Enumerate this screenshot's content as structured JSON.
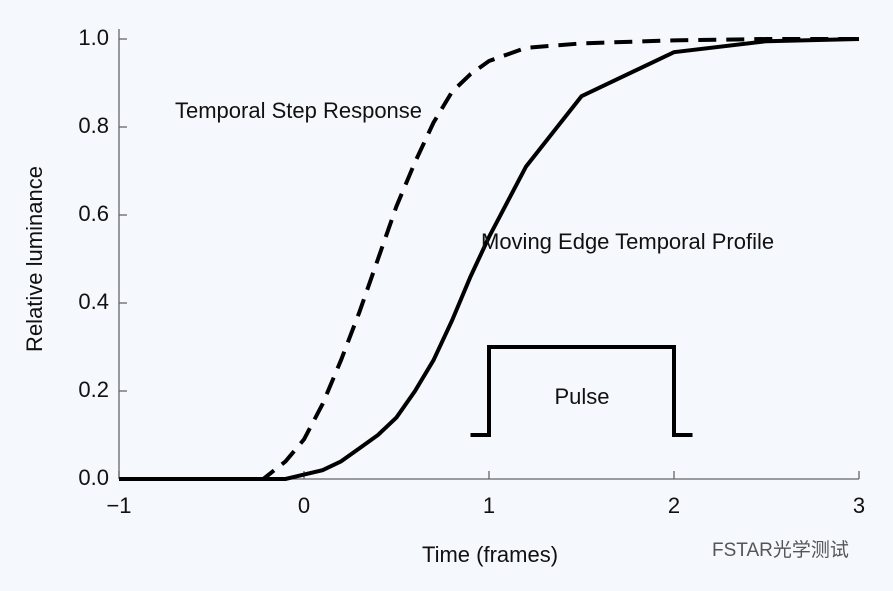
{
  "chart_data": {
    "type": "line",
    "x_label": "Time (frames)",
    "y_label": "Relative luminance",
    "xlim": [
      -1,
      3
    ],
    "ylim": [
      0,
      1
    ],
    "xticks": [
      {
        "value": -1,
        "label": "−1"
      },
      0,
      1,
      2,
      3
    ],
    "yticks": [
      {
        "value": 0,
        "label": "0.0"
      },
      {
        "value": 0.2,
        "label": "0.2"
      },
      {
        "value": 0.4,
        "label": "0.4"
      },
      {
        "value": 0.6,
        "label": "0.6"
      },
      {
        "value": 0.8,
        "label": "0.8"
      },
      {
        "value": 1,
        "label": "1.0"
      }
    ],
    "series": [
      {
        "name": "Temporal Step Response",
        "color": "#000000",
        "dash": true,
        "x": [
          -1,
          -0.22,
          -0.1,
          0,
          0.1,
          0.2,
          0.3,
          0.4,
          0.5,
          0.6,
          0.7,
          0.8,
          0.9,
          1.0,
          1.2,
          1.5,
          2,
          2.5,
          3
        ],
        "values": [
          0,
          0,
          0.04,
          0.09,
          0.17,
          0.27,
          0.38,
          0.5,
          0.62,
          0.72,
          0.81,
          0.88,
          0.92,
          0.95,
          0.98,
          0.99,
          0.997,
          1,
          1
        ]
      },
      {
        "name": "Moving Edge Temporal Profile",
        "color": "#000000",
        "dash": false,
        "x": [
          -1,
          -0.25,
          -0.1,
          0,
          0.1,
          0.2,
          0.3,
          0.4,
          0.5,
          0.6,
          0.7,
          0.8,
          0.9,
          1.0,
          1.2,
          1.5,
          2,
          2.5,
          3
        ],
        "values": [
          0,
          0,
          0,
          0.01,
          0.02,
          0.04,
          0.07,
          0.1,
          0.14,
          0.2,
          0.27,
          0.36,
          0.46,
          0.55,
          0.71,
          0.87,
          0.97,
          0.995,
          1
        ]
      },
      {
        "name": "Pulse",
        "color": "#000000",
        "dash": false,
        "x": [
          0.9,
          1,
          1,
          2,
          2,
          2.1
        ],
        "values": [
          0.1,
          0.1,
          0.3,
          0.3,
          0.1,
          0.1
        ]
      }
    ],
    "watermark": "FSTAR光学测试"
  }
}
